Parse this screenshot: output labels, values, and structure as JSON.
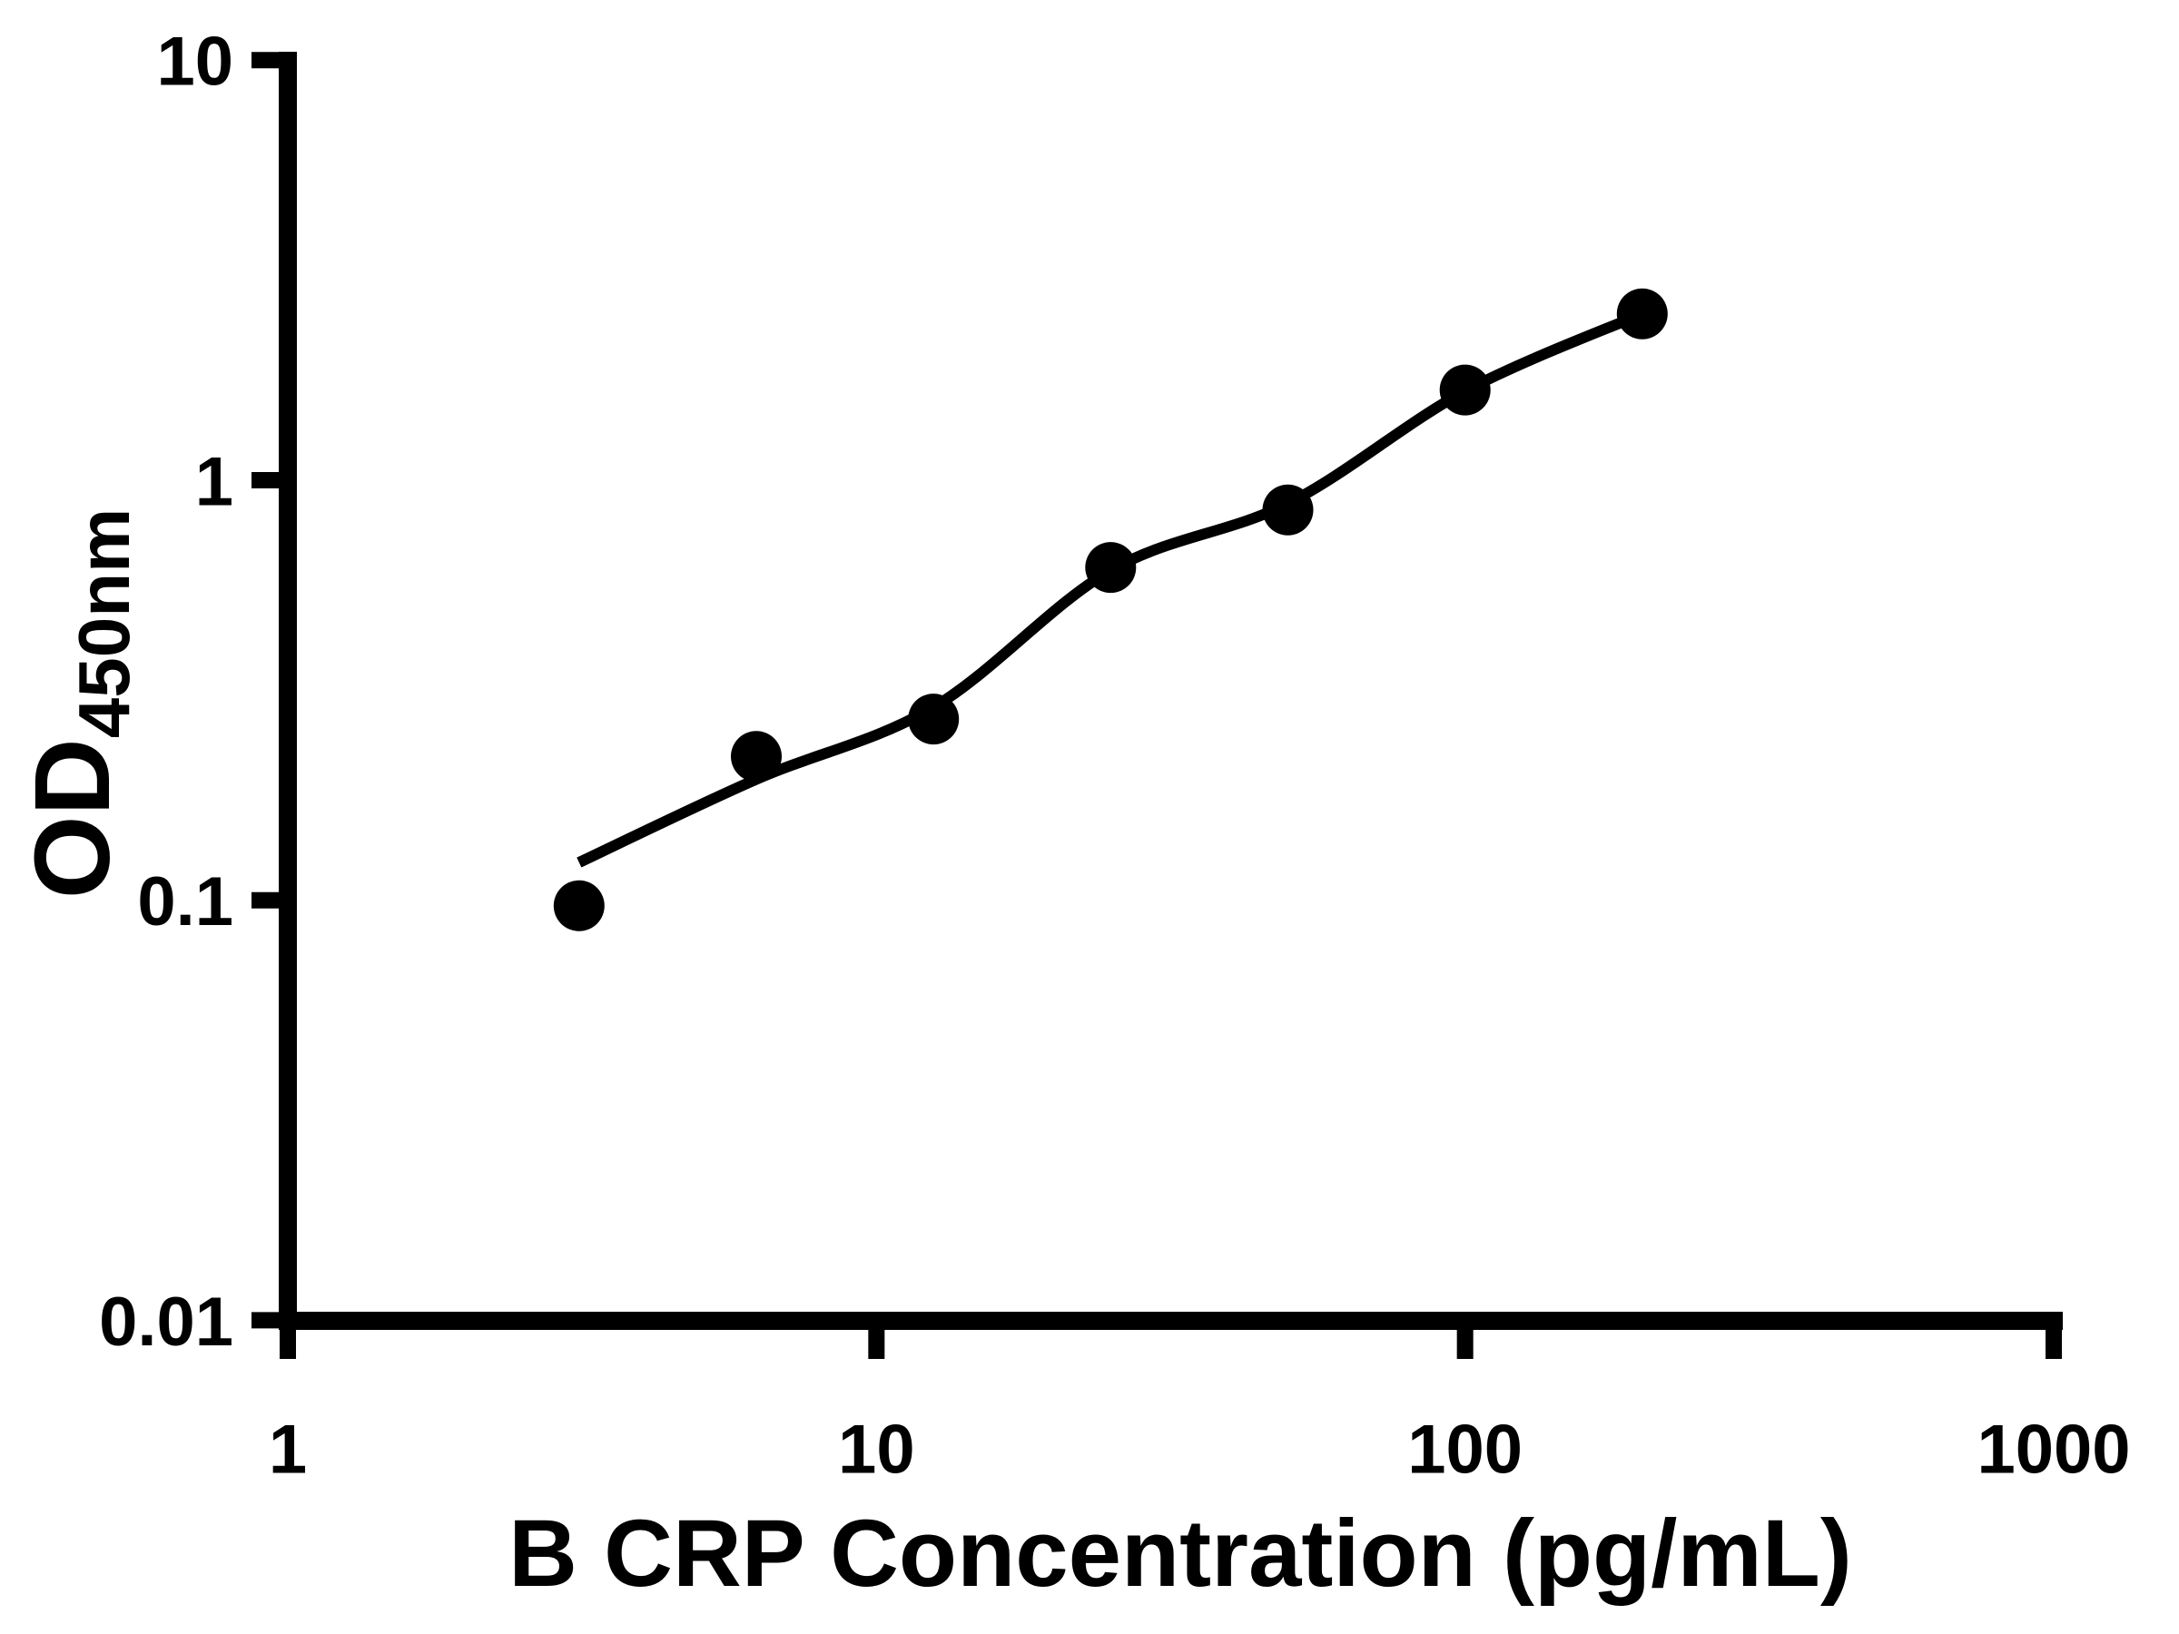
{
  "figure": {
    "background_color": "#ffffff",
    "ink_color": "#000000"
  },
  "chart_data": {
    "type": "scatter",
    "title": "",
    "xlabel": "B CRP Concentration (pg/mL)",
    "ylabel_main": "OD",
    "ylabel_sub": "450nm",
    "x_unit": "pg/mL",
    "x_scale": "log10",
    "y_scale": "log10",
    "xlim": [
      1,
      1000
    ],
    "ylim": [
      0.01,
      10
    ],
    "grid": false,
    "legend": "none",
    "x_ticks": [
      {
        "value": 1,
        "label": "1"
      },
      {
        "value": 10,
        "label": "10"
      },
      {
        "value": 100,
        "label": "100"
      },
      {
        "value": 1000,
        "label": "1000"
      }
    ],
    "y_ticks": [
      {
        "value": 10,
        "label": "10"
      },
      {
        "value": 1,
        "label": "1"
      },
      {
        "value": 0.1,
        "label": "0.1"
      },
      {
        "value": 0.01,
        "label": "0.01"
      }
    ],
    "series": [
      {
        "name": "standard-curve-points",
        "marker": "filled-circle",
        "color": "#000000",
        "points": [
          {
            "x": 3.125,
            "y": 0.097
          },
          {
            "x": 6.25,
            "y": 0.22
          },
          {
            "x": 12.5,
            "y": 0.27
          },
          {
            "x": 25,
            "y": 0.62
          },
          {
            "x": 50,
            "y": 0.85
          },
          {
            "x": 100,
            "y": 1.64
          },
          {
            "x": 200,
            "y": 2.49
          }
        ]
      }
    ],
    "fit_curve": {
      "name": "4pl-fit-line",
      "color": "#000000",
      "samples": [
        {
          "x": 3.125,
          "y": 0.123
        },
        {
          "x": 6.25,
          "y": 0.194
        },
        {
          "x": 12.5,
          "y": 0.288
        },
        {
          "x": 25,
          "y": 0.61
        },
        {
          "x": 50,
          "y": 0.88
        },
        {
          "x": 100,
          "y": 1.63
        },
        {
          "x": 200,
          "y": 2.49
        }
      ]
    }
  }
}
